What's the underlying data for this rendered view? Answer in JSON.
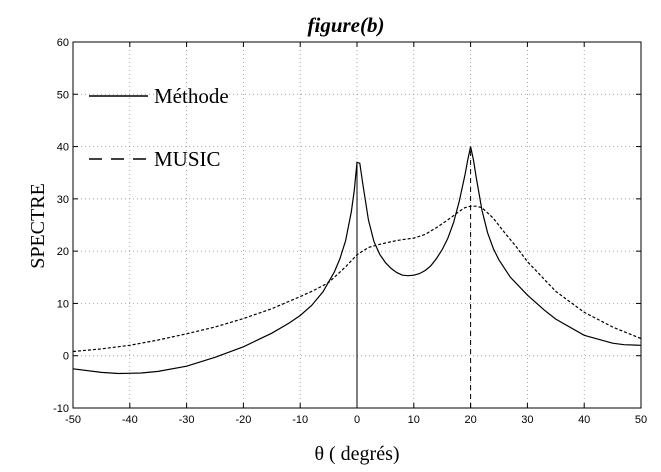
{
  "chart_data": {
    "type": "line",
    "title": "figure(b)",
    "xlabel": "θ ( degrés)",
    "ylabel": "SPECTRE",
    "xlim": [
      -50,
      50
    ],
    "ylim": [
      -10,
      60
    ],
    "xticks": [
      -50,
      -40,
      -30,
      -20,
      -10,
      0,
      10,
      20,
      30,
      40,
      50
    ],
    "yticks": [
      -10,
      0,
      10,
      20,
      30,
      40,
      50,
      60
    ],
    "grid": true,
    "legend_position": "top-left",
    "series": [
      {
        "name": "Méthode",
        "style": "solid",
        "color": "#000000",
        "x": [
          -50,
          -45,
          -42,
          -38,
          -35,
          -30,
          -25,
          -20,
          -15,
          -12,
          -10,
          -8,
          -6,
          -4,
          -3,
          -2,
          -1,
          -0.5,
          0,
          0.5,
          1,
          2,
          3,
          4,
          5,
          6,
          7,
          8,
          9,
          10,
          11,
          12,
          13,
          14,
          15,
          16,
          17,
          18,
          19,
          19.5,
          20,
          20.5,
          21,
          22,
          23,
          24,
          25,
          27,
          30,
          33,
          35,
          40,
          45,
          47,
          50
        ],
        "y": [
          -2.5,
          -3.2,
          -3.4,
          -3.3,
          -3.0,
          -2.0,
          -0.3,
          1.7,
          4.3,
          6.2,
          7.7,
          9.6,
          12.2,
          16.0,
          18.6,
          22.0,
          27.5,
          31.5,
          37.0,
          36.8,
          33.0,
          26.0,
          21.8,
          19.4,
          17.8,
          16.7,
          15.9,
          15.4,
          15.3,
          15.4,
          15.7,
          16.3,
          17.2,
          18.6,
          20.3,
          22.5,
          25.5,
          29.5,
          34.5,
          37.5,
          40.0,
          37.5,
          34.0,
          27.8,
          23.5,
          20.5,
          18.3,
          15.0,
          11.6,
          8.7,
          7.0,
          3.9,
          2.4,
          2.1,
          2.0
        ]
      },
      {
        "name": "MUSIC",
        "style": "dashed",
        "color": "#000000",
        "x": [
          -50,
          -45,
          -40,
          -35,
          -30,
          -25,
          -20,
          -15,
          -10,
          -8,
          -6,
          -5,
          -4,
          -2,
          0,
          2,
          4,
          6,
          8,
          10,
          12,
          14,
          16,
          18,
          19,
          20,
          21,
          22,
          24,
          26,
          28,
          30,
          35,
          40,
          45,
          50
        ],
        "y": [
          0.8,
          1.3,
          2.0,
          3.0,
          4.2,
          5.5,
          7.1,
          9.0,
          11.3,
          12.3,
          13.4,
          14.0,
          15.0,
          17.0,
          19.3,
          20.7,
          21.3,
          21.8,
          22.2,
          22.5,
          23.2,
          24.5,
          26.0,
          27.6,
          28.3,
          28.6,
          28.6,
          28.3,
          26.3,
          23.5,
          20.9,
          18.0,
          12.3,
          8.3,
          5.5,
          3.3
        ]
      }
    ],
    "annotations": [
      {
        "type": "vertical-line",
        "x": 0,
        "y_from": -10,
        "y_to": 37,
        "style": "solid"
      },
      {
        "type": "vertical-line",
        "x": 20,
        "y_from": -10,
        "y_to": 40,
        "style": "dashed"
      }
    ]
  }
}
